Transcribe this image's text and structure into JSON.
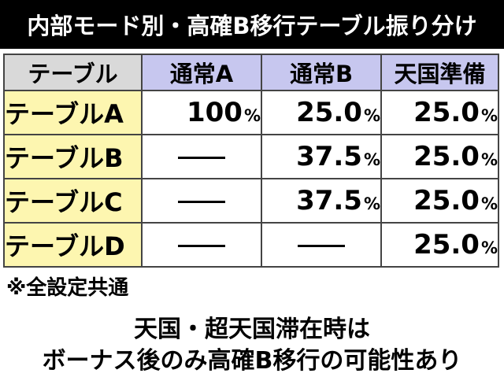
{
  "title": "内部モード別・高確B移行テーブル振り分け",
  "table": {
    "corner_label": "テーブル",
    "columns": [
      "通常A",
      "通常B",
      "天国準備"
    ],
    "rows": [
      {
        "label": "テーブルA",
        "cells": [
          {
            "value": "100",
            "unit": "%"
          },
          {
            "value": "25.0",
            "unit": "%"
          },
          {
            "value": "25.0",
            "unit": "%"
          }
        ]
      },
      {
        "label": "テーブルB",
        "cells": [
          {
            "value": "—",
            "unit": ""
          },
          {
            "value": "37.5",
            "unit": "%"
          },
          {
            "value": "25.0",
            "unit": "%"
          }
        ]
      },
      {
        "label": "テーブルC",
        "cells": [
          {
            "value": "—",
            "unit": ""
          },
          {
            "value": "37.5",
            "unit": "%"
          },
          {
            "value": "25.0",
            "unit": "%"
          }
        ]
      },
      {
        "label": "テーブルD",
        "cells": [
          {
            "value": "—",
            "unit": ""
          },
          {
            "value": "—",
            "unit": ""
          },
          {
            "value": "25.0",
            "unit": "%"
          }
        ]
      }
    ]
  },
  "note": "※全設定共通",
  "footer": {
    "line1": "天国・超天国滞在時は",
    "line2": "ボーナス後のみ高確B移行の可能性あり"
  },
  "colors": {
    "title_background": "#000000",
    "column_header": "#c7c7ef",
    "row_header": "#fdf6b0",
    "corner": "#d9d9d9"
  }
}
